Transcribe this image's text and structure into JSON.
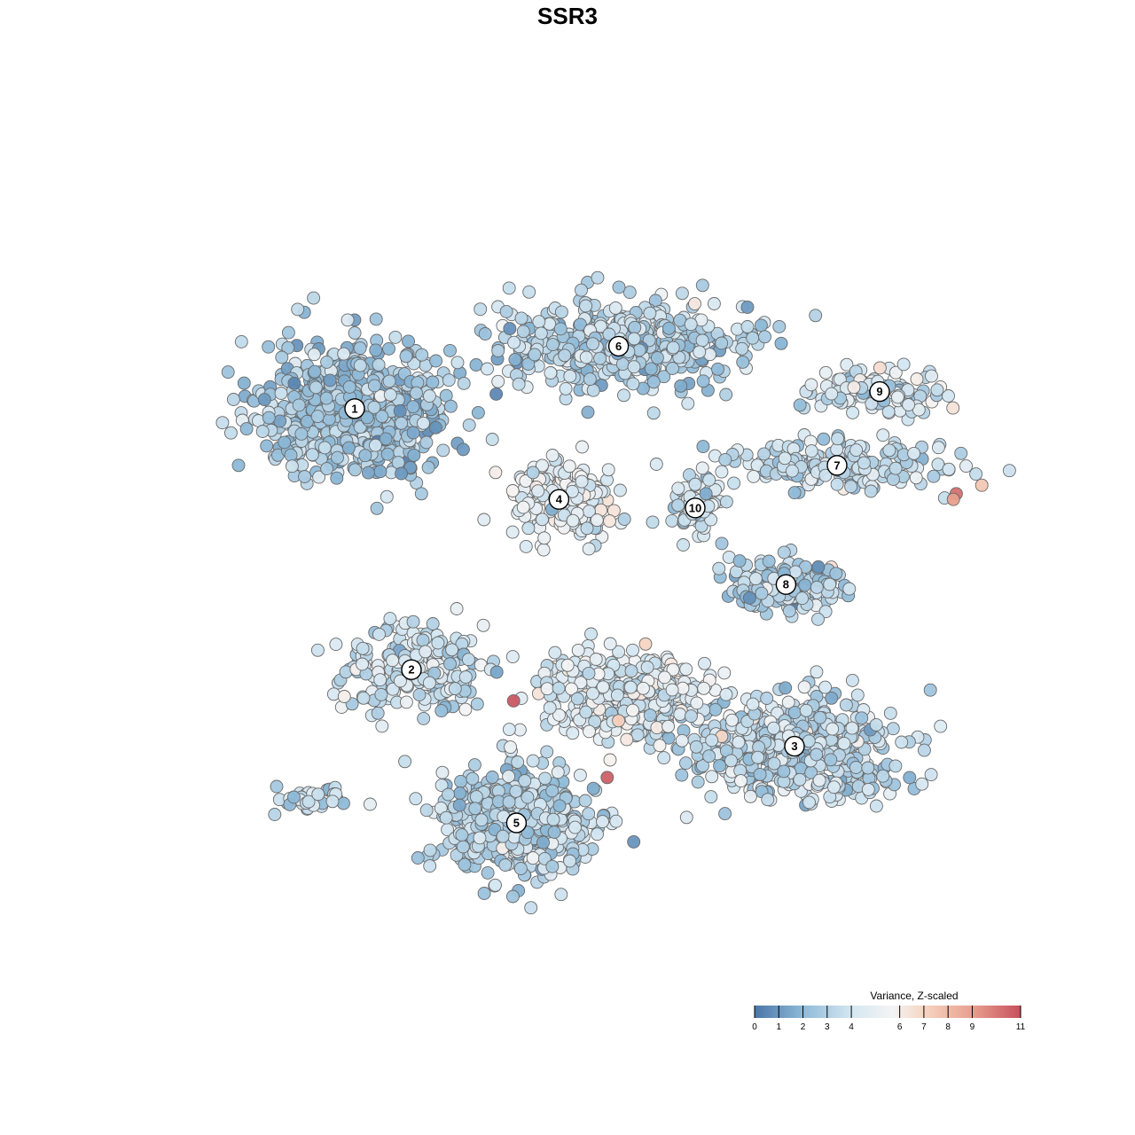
{
  "chart_data": {
    "type": "scatter",
    "title": "SSR3",
    "legend": {
      "title": "Variance, Z-scaled",
      "placement": "bottom-right",
      "ticks": [
        0,
        1,
        2,
        3,
        4,
        6,
        7,
        8,
        9,
        11
      ],
      "range": [
        0,
        11
      ],
      "colors": [
        "#4a76a8",
        "#8db9d7",
        "#d3e6f1",
        "#f4f4f4",
        "#f6d4c1",
        "#e89f8d",
        "#c7505e"
      ]
    },
    "grid": false,
    "axes_visible": false,
    "clusters": [
      {
        "label": "1",
        "x": -7.5,
        "y": 5.6,
        "mean_value": 2.6,
        "spread": [
          3.0,
          2.2
        ],
        "n": 650
      },
      {
        "label": "6",
        "x": 1.8,
        "y": 7.8,
        "mean_value": 3.3,
        "spread": [
          4.0,
          1.4
        ],
        "n": 520
      },
      {
        "label": "4",
        "x": -0.3,
        "y": 2.4,
        "mean_value": 4.8,
        "spread": [
          1.5,
          1.3
        ],
        "n": 230
      },
      {
        "label": "10",
        "x": 4.5,
        "y": 2.1,
        "mean_value": 3.8,
        "spread": [
          0.9,
          0.9
        ],
        "n": 70
      },
      {
        "label": "9",
        "x": 11.0,
        "y": 6.2,
        "mean_value": 4.0,
        "spread": [
          2.2,
          0.8
        ],
        "n": 120
      },
      {
        "label": "7",
        "x": 9.5,
        "y": 3.6,
        "mean_value": 3.6,
        "spread": [
          3.5,
          0.8
        ],
        "n": 200
      },
      {
        "label": "8",
        "x": 7.7,
        "y": -0.6,
        "mean_value": 3.0,
        "spread": [
          2.0,
          0.8
        ],
        "n": 160
      },
      {
        "label": "2",
        "x": -5.5,
        "y": -3.6,
        "mean_value": 3.8,
        "spread": [
          2.3,
          1.3
        ],
        "n": 230
      },
      {
        "label": "3",
        "x": 8.0,
        "y": -6.3,
        "mean_value": 3.6,
        "spread": [
          3.4,
          1.6
        ],
        "n": 520
      },
      {
        "label": "5",
        "x": -1.8,
        "y": -9.0,
        "mean_value": 3.2,
        "spread": [
          2.4,
          1.6
        ],
        "n": 480
      }
    ],
    "extra_groups": [
      {
        "x": 2.0,
        "y": -4.5,
        "mean_value": 4.5,
        "spread": [
          2.8,
          1.4
        ],
        "n": 360
      },
      {
        "x": -9.0,
        "y": -8.2,
        "mean_value": 3.4,
        "spread": [
          1.2,
          0.5
        ],
        "n": 40
      }
    ],
    "outliers": [
      {
        "x": 13.7,
        "y": 2.6,
        "value": 10.2
      },
      {
        "x": 13.6,
        "y": 2.4,
        "value": 9.0
      },
      {
        "x": -1.9,
        "y": -4.7,
        "value": 10.8
      },
      {
        "x": 1.4,
        "y": -7.4,
        "value": 10.6
      },
      {
        "x": 14.6,
        "y": 2.9,
        "value": 7.5
      },
      {
        "x": 1.8,
        "y": -5.4,
        "value": 7.2
      }
    ]
  }
}
